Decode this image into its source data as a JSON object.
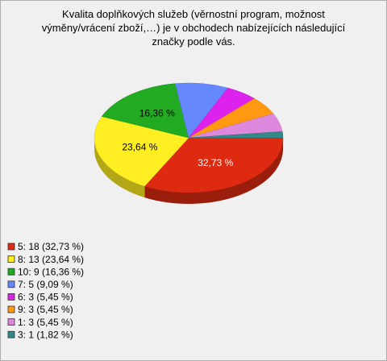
{
  "chart_data": {
    "type": "pie3d",
    "title": "Kvalita doplňkových služeb (věrnostní program, možnost výměny/vrácení zboží,…) je v obchodech nabízejících následující značky podle vás.",
    "categories": [
      "5",
      "8",
      "10",
      "7",
      "6",
      "9",
      "1",
      "3"
    ],
    "values": [
      32.73,
      23.64,
      16.36,
      9.09,
      5.45,
      5.45,
      5.45,
      1.82
    ],
    "value_labels": [
      "32,73 %",
      "23,64 %",
      "16,36 %",
      null,
      null,
      null,
      null,
      null
    ],
    "legend": [
      "5: 18 (32,73 %)",
      "8: 13 (23,64 %)",
      "10: 9 (16,36 %)",
      "7: 5 (9,09 %)",
      "6: 3 (5,45 %)",
      "9: 3 (5,45 %)",
      "1: 3 (5,45 %)",
      "3: 1 (1,82 %)"
    ],
    "colors": [
      "#dd2a10",
      "#ffee22",
      "#22aa22",
      "#6688ff",
      "#dd22ee",
      "#ff9911",
      "#dd88dd",
      "#338888"
    ]
  }
}
